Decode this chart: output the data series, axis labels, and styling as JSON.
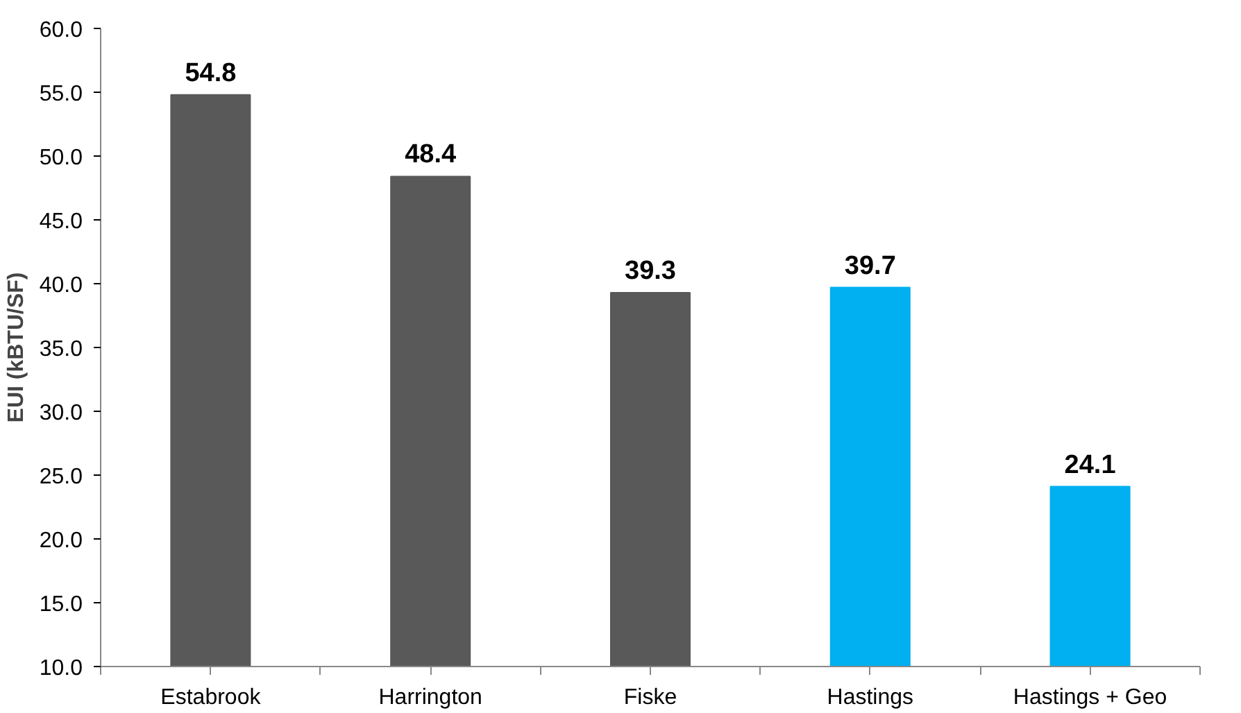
{
  "chart_data": {
    "type": "bar",
    "ylabel": "EUI (kBTU/SF)",
    "categories": [
      "Estabrook",
      "Harrington",
      "Fiske",
      "Hastings",
      "Hastings + Geo"
    ],
    "values": [
      54.8,
      48.4,
      39.3,
      39.7,
      24.1
    ],
    "colors": [
      "#595959",
      "#595959",
      "#595959",
      "#00b0f0",
      "#00b0f0"
    ],
    "ylim": [
      10,
      60
    ],
    "yticks": [
      {
        "value": 10,
        "label": "10.0"
      },
      {
        "value": 15,
        "label": "15.0"
      },
      {
        "value": 20,
        "label": "20.0"
      },
      {
        "value": 25,
        "label": "25.0"
      },
      {
        "value": 30,
        "label": "30.0"
      },
      {
        "value": 35,
        "label": "35.0"
      },
      {
        "value": 40,
        "label": "40.0"
      },
      {
        "value": 45,
        "label": "45.0"
      },
      {
        "value": 50,
        "label": "50.0"
      },
      {
        "value": 55,
        "label": "55.0"
      },
      {
        "value": 60,
        "label": "60.0"
      }
    ],
    "data_labels": true,
    "grid": false
  }
}
